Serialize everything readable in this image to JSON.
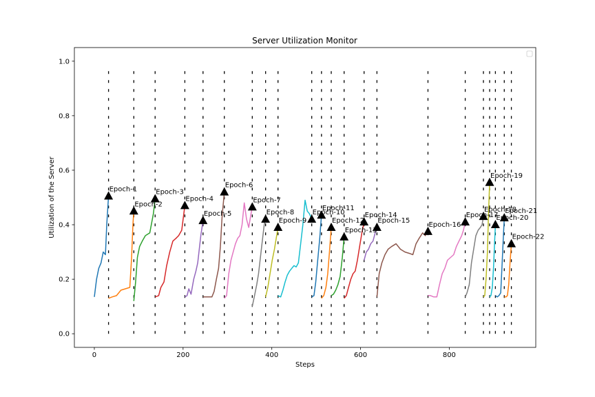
{
  "chart_data": {
    "type": "line",
    "title": "Server Utilization Monitor",
    "xlabel": "Steps",
    "ylabel": "Utilization of the Server",
    "xlim": [
      -45,
      995
    ],
    "ylim": [
      -0.05,
      1.05
    ],
    "x_ticks": [
      0,
      200,
      400,
      600,
      800
    ],
    "y_ticks": [
      0.0,
      0.2,
      0.4,
      0.6,
      0.8,
      1.0
    ],
    "y_tick_labels": [
      "0.0",
      "0.2",
      "0.4",
      "0.6",
      "0.8",
      "1.0"
    ],
    "grid": false,
    "legend": "top-right (empty)",
    "vlines": {
      "style": "dashed",
      "color": "#000000",
      "ymin": 0.0,
      "ymax": 0.97,
      "x": [
        32,
        89,
        137,
        204,
        245,
        293,
        356,
        386,
        414,
        490,
        512,
        534,
        563,
        608,
        637,
        752,
        836,
        877,
        891,
        904,
        924,
        940
      ]
    },
    "series": [
      {
        "color": "#1f77b4",
        "x": [
          0,
          5,
          10,
          15,
          20,
          25,
          28,
          32
        ],
        "y": [
          0.135,
          0.2,
          0.24,
          0.26,
          0.3,
          0.29,
          0.4,
          0.505
        ]
      },
      {
        "color": "#ff7f0e",
        "x": [
          32,
          40,
          50,
          60,
          70,
          80,
          84,
          87,
          89
        ],
        "y": [
          0.13,
          0.135,
          0.14,
          0.16,
          0.165,
          0.17,
          0.28,
          0.4,
          0.45
        ]
      },
      {
        "color": "#2ca02c",
        "x": [
          89,
          93,
          97,
          102,
          108,
          115,
          125,
          133,
          137
        ],
        "y": [
          0.12,
          0.19,
          0.28,
          0.32,
          0.34,
          0.36,
          0.37,
          0.44,
          0.495
        ]
      },
      {
        "color": "#d62728",
        "x": [
          137,
          145,
          150,
          157,
          163,
          170,
          177,
          184,
          190,
          197,
          204
        ],
        "y": [
          0.135,
          0.14,
          0.17,
          0.19,
          0.25,
          0.3,
          0.34,
          0.35,
          0.36,
          0.38,
          0.47
        ]
      },
      {
        "color": "#9467bd",
        "x": [
          204,
          209,
          213,
          218,
          224,
          229,
          233,
          240,
          245
        ],
        "y": [
          0.135,
          0.14,
          0.165,
          0.145,
          0.2,
          0.23,
          0.26,
          0.36,
          0.415
        ]
      },
      {
        "color": "#8c564b",
        "x": [
          245,
          255,
          265,
          270,
          275,
          280,
          284,
          288,
          293
        ],
        "y": [
          0.135,
          0.135,
          0.135,
          0.155,
          0.2,
          0.24,
          0.32,
          0.43,
          0.52
        ]
      },
      {
        "color": "#e377c2",
        "x": [
          293,
          298,
          303,
          308,
          313,
          318,
          323,
          328,
          333,
          338,
          343,
          348,
          352,
          356
        ],
        "y": [
          0.13,
          0.14,
          0.22,
          0.27,
          0.3,
          0.33,
          0.35,
          0.36,
          0.4,
          0.48,
          0.42,
          0.39,
          0.43,
          0.465
        ]
      },
      {
        "color": "#7f7f7f",
        "x": [
          356,
          361,
          366,
          370,
          375,
          380,
          383,
          386
        ],
        "y": [
          0.1,
          0.14,
          0.18,
          0.22,
          0.29,
          0.36,
          0.4,
          0.42
        ]
      },
      {
        "color": "#bcbd22",
        "x": [
          386,
          391,
          396,
          401,
          406,
          410,
          414
        ],
        "y": [
          0.135,
          0.17,
          0.22,
          0.27,
          0.31,
          0.35,
          0.39
        ]
      },
      {
        "color": "#17becf",
        "x": [
          414,
          420,
          425,
          430,
          435,
          440,
          445,
          450,
          455,
          460,
          465,
          470,
          475,
          480,
          485,
          490
        ],
        "y": [
          0.14,
          0.135,
          0.16,
          0.19,
          0.215,
          0.23,
          0.24,
          0.25,
          0.245,
          0.26,
          0.33,
          0.4,
          0.49,
          0.45,
          0.44,
          0.42
        ]
      },
      {
        "color": "#1f77b4",
        "x": [
          490,
          495,
          499,
          503,
          508,
          512
        ],
        "y": [
          0.135,
          0.14,
          0.19,
          0.26,
          0.35,
          0.435
        ]
      },
      {
        "color": "#ff7f0e",
        "x": [
          512,
          517,
          522,
          526,
          530,
          534
        ],
        "y": [
          0.13,
          0.14,
          0.17,
          0.22,
          0.3,
          0.39
        ]
      },
      {
        "color": "#2ca02c",
        "x": [
          534,
          539,
          544,
          549,
          554,
          559,
          563
        ],
        "y": [
          0.14,
          0.145,
          0.16,
          0.18,
          0.21,
          0.28,
          0.355
        ]
      },
      {
        "color": "#d62728",
        "x": [
          563,
          568,
          573,
          578,
          583,
          588,
          593,
          598,
          603,
          608
        ],
        "y": [
          0.13,
          0.14,
          0.17,
          0.2,
          0.22,
          0.23,
          0.27,
          0.32,
          0.37,
          0.41
        ]
      },
      {
        "color": "#9467bd",
        "x": [
          608,
          613,
          618,
          623,
          628,
          633,
          637
        ],
        "y": [
          0.27,
          0.3,
          0.31,
          0.33,
          0.34,
          0.37,
          0.39
        ]
      },
      {
        "color": "#8c564b",
        "x": [
          637,
          642,
          648,
          655,
          662,
          670,
          680,
          690,
          700,
          710,
          718,
          725,
          732,
          740,
          746,
          752
        ],
        "y": [
          0.135,
          0.22,
          0.26,
          0.29,
          0.31,
          0.32,
          0.33,
          0.31,
          0.3,
          0.295,
          0.29,
          0.33,
          0.35,
          0.37,
          0.36,
          0.375
        ]
      },
      {
        "color": "#e377c2",
        "x": [
          752,
          758,
          765,
          772,
          778,
          784,
          790,
          796,
          803,
          810,
          816,
          822,
          828,
          832,
          836
        ],
        "y": [
          0.14,
          0.14,
          0.135,
          0.135,
          0.18,
          0.22,
          0.24,
          0.27,
          0.28,
          0.29,
          0.32,
          0.34,
          0.36,
          0.38,
          0.41
        ]
      },
      {
        "color": "#7f7f7f",
        "x": [
          836,
          840,
          845,
          850,
          855,
          860,
          865,
          870,
          874,
          877
        ],
        "y": [
          0.135,
          0.15,
          0.18,
          0.26,
          0.31,
          0.36,
          0.38,
          0.39,
          0.4,
          0.43
        ]
      },
      {
        "color": "#bcbd22",
        "x": [
          877,
          880,
          883,
          886,
          888,
          891
        ],
        "y": [
          0.135,
          0.14,
          0.2,
          0.3,
          0.42,
          0.555
        ]
      },
      {
        "color": "#17becf",
        "x": [
          891,
          894,
          897,
          900,
          902,
          904
        ],
        "y": [
          0.135,
          0.14,
          0.17,
          0.25,
          0.33,
          0.4
        ]
      },
      {
        "color": "#1f77b4",
        "x": [
          904,
          908,
          912,
          916,
          919,
          922,
          924
        ],
        "y": [
          0.14,
          0.135,
          0.14,
          0.15,
          0.25,
          0.36,
          0.425
        ]
      },
      {
        "color": "#ff7f0e",
        "x": [
          924,
          928,
          931,
          934,
          937,
          940
        ],
        "y": [
          0.135,
          0.135,
          0.14,
          0.18,
          0.26,
          0.33
        ]
      }
    ],
    "markers": [
      {
        "label": "Epoch-1",
        "x": 32,
        "y": 0.505
      },
      {
        "label": "Epoch-2",
        "x": 89,
        "y": 0.45
      },
      {
        "label": "Epoch-3",
        "x": 137,
        "y": 0.495
      },
      {
        "label": "Epoch-4",
        "x": 204,
        "y": 0.47
      },
      {
        "label": "Epoch-5",
        "x": 245,
        "y": 0.415
      },
      {
        "label": "Epoch-6",
        "x": 293,
        "y": 0.52
      },
      {
        "label": "Epoch-7",
        "x": 356,
        "y": 0.465
      },
      {
        "label": "Epoch-8",
        "x": 386,
        "y": 0.42
      },
      {
        "label": "Epoch-9",
        "x": 414,
        "y": 0.39
      },
      {
        "label": "Epoch-10",
        "x": 490,
        "y": 0.42
      },
      {
        "label": "Epoch-11",
        "x": 512,
        "y": 0.435
      },
      {
        "label": "Epoch-12",
        "x": 534,
        "y": 0.39
      },
      {
        "label": "Epoch-13",
        "x": 563,
        "y": 0.355
      },
      {
        "label": "Epoch-14",
        "x": 608,
        "y": 0.41
      },
      {
        "label": "Epoch-15",
        "x": 637,
        "y": 0.39
      },
      {
        "label": "Epoch-16",
        "x": 752,
        "y": 0.375
      },
      {
        "label": "Epoch-17",
        "x": 836,
        "y": 0.41
      },
      {
        "label": "Epoch-18",
        "x": 877,
        "y": 0.43
      },
      {
        "label": "Epoch-19",
        "x": 891,
        "y": 0.555
      },
      {
        "label": "Epoch-20",
        "x": 904,
        "y": 0.4
      },
      {
        "label": "Epoch-21",
        "x": 924,
        "y": 0.425
      },
      {
        "label": "Epoch-22",
        "x": 940,
        "y": 0.33
      }
    ],
    "marker_color": "#000000"
  }
}
